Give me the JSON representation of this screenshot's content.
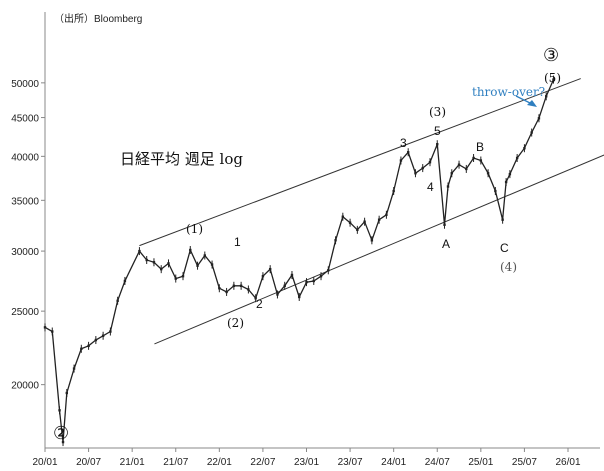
{
  "chart_data": {
    "type": "line",
    "title": "日経平均 週足 log",
    "source": "（出所）Bloomberg",
    "y_scale": "log",
    "ylim": [
      16500,
      62000
    ],
    "y_ticks": [
      "20000",
      "25000",
      "30000",
      "35000",
      "40000",
      "45000",
      "50000"
    ],
    "y_tick_values": [
      20000,
      25000,
      30000,
      35000,
      40000,
      45000,
      50000
    ],
    "x_ticks": [
      "20/01",
      "20/07",
      "21/01",
      "21/07",
      "22/01",
      "22/07",
      "23/01",
      "23/07",
      "24/01",
      "24/07",
      "25/01",
      "25/07",
      "26/01"
    ],
    "xlim": [
      "2020-01",
      "2026-01"
    ],
    "series": [
      {
        "color": "#222222",
        "x": [
          "2020-01",
          "2020-02",
          "2020-03",
          "2020-03",
          "2020-04",
          "2020-05",
          "2020-06",
          "2020-07",
          "2020-08",
          "2020-09",
          "2020-10",
          "2020-11",
          "2020-12",
          "2021-02",
          "2021-03",
          "2021-04",
          "2021-05",
          "2021-06",
          "2021-07",
          "2021-08",
          "2021-09",
          "2021-10",
          "2021-11",
          "2021-12",
          "2022-01",
          "2022-02",
          "2022-03",
          "2022-04",
          "2022-05",
          "2022-06",
          "2022-07",
          "2022-08",
          "2022-09",
          "2022-10",
          "2022-11",
          "2022-12",
          "2023-01",
          "2023-02",
          "2023-03",
          "2023-04",
          "2023-05",
          "2023-06",
          "2023-07",
          "2023-08",
          "2023-09",
          "2023-10",
          "2023-11",
          "2023-12",
          "2024-01",
          "2024-02",
          "2024-03",
          "2024-04",
          "2024-05",
          "2024-06",
          "2024-07",
          "2024-08",
          "2024-08",
          "2024-09",
          "2024-10",
          "2024-11",
          "2024-12",
          "2025-01",
          "2025-02",
          "2025-03",
          "2025-04",
          "2025-04",
          "2025-05",
          "2025-06",
          "2025-07",
          "2025-08",
          "2025-09",
          "2025-10",
          "2025-11"
        ],
        "y": [
          23800,
          23500,
          18500,
          16800,
          19500,
          21000,
          22300,
          22500,
          22900,
          23200,
          23500,
          25800,
          27400,
          30000,
          29200,
          29000,
          28400,
          28900,
          27600,
          27800,
          30100,
          28700,
          29600,
          28800,
          26800,
          26500,
          27000,
          27000,
          26700,
          26000,
          27800,
          28400,
          26300,
          27000,
          27900,
          26100,
          27300,
          27400,
          27800,
          28300,
          31000,
          33300,
          32700,
          32000,
          32800,
          31000,
          33000,
          33500,
          36000,
          39500,
          40500,
          38000,
          38600,
          39300,
          41500,
          32500,
          36500,
          38000,
          39000,
          38500,
          39800,
          39500,
          38000,
          36000,
          33000,
          37000,
          37900,
          39800,
          41000,
          43000,
          44900,
          48000,
          50500
        ]
      }
    ],
    "channel": {
      "upper": {
        "from": [
          "2021-02",
          30500
        ],
        "to": [
          "2025-12",
          49500
        ]
      },
      "lower": {
        "from": [
          "2021-02",
          22200
        ],
        "to": [
          "2025-12",
          38000
        ]
      }
    },
    "annotations": {
      "wave_big_2": "②",
      "wave_big_3": "③",
      "wave_p1": "(1)",
      "wave_p2": "(2)",
      "wave_p3": "(3)",
      "wave_p4": "(4)",
      "wave_p5": "(5)",
      "wave_1": "1",
      "wave_2": "2",
      "wave_3": "3",
      "wave_4": "4",
      "wave_5": "5",
      "wave_a": "A",
      "wave_b": "B",
      "wave_c": "C",
      "throwover": "throw-over?"
    }
  }
}
